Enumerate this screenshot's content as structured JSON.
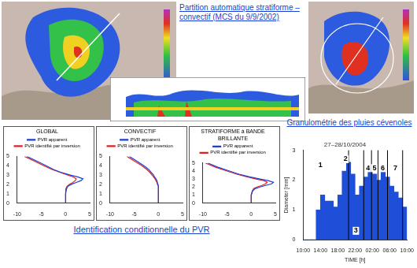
{
  "slide": {
    "top_caption": "Partition automatique stratiforme – convectif (MCS du 9/9/2002)",
    "pvr_caption": "Identification conditionnelle du PVR",
    "granulo_caption": "Granulométrie des pluies cévenoles"
  },
  "chart_data": [
    {
      "type": "line",
      "title": "GLOBAL",
      "legend": "top",
      "xlim": [
        -10,
        5
      ],
      "xticks": [
        -10,
        -5,
        0,
        5
      ],
      "ylim": [
        0,
        5
      ],
      "yticks": [
        0,
        1,
        2,
        3,
        4,
        5
      ],
      "series": [
        {
          "name": "PVR apparent",
          "color": "#1f3fd0",
          "x": [
            0,
            0,
            0,
            0.2,
            0.5,
            1.2,
            2.2,
            3.2,
            3.6,
            2.5,
            1,
            -1,
            -2.5,
            -4,
            -6,
            -8
          ],
          "y": [
            0,
            0.5,
            1,
            1.5,
            1.8,
            2,
            2.2,
            2.4,
            2.6,
            2.8,
            3,
            3.3,
            3.6,
            4,
            4.5,
            5
          ]
        },
        {
          "name": "PVR identifié par inversion",
          "color": "#e02020",
          "x": [
            0,
            0,
            0,
            0.1,
            0.3,
            0.8,
            1.5,
            2.0,
            2.2,
            1.6,
            0.5,
            -1.2,
            -2.8,
            -4.5,
            -6.5,
            -8.5
          ],
          "y": [
            0,
            0.5,
            1,
            1.5,
            1.8,
            2,
            2.2,
            2.4,
            2.6,
            2.8,
            3,
            3.3,
            3.6,
            4,
            4.5,
            5
          ]
        }
      ]
    },
    {
      "type": "line",
      "title": "CONVECTIF",
      "legend": "top",
      "xlim": [
        -10,
        5
      ],
      "xticks": [
        -10,
        -5,
        0,
        5
      ],
      "ylim": [
        0,
        5
      ],
      "yticks": [
        0,
        1,
        2,
        3,
        4,
        5
      ],
      "series": [
        {
          "name": "PVR apparent",
          "color": "#1f3fd0",
          "x": [
            0,
            0,
            0,
            0,
            0,
            -0.1,
            -0.2,
            -0.3,
            -0.5,
            -0.8,
            -1,
            -1.5,
            -2,
            -3,
            -4.5,
            -6
          ],
          "y": [
            0,
            0.5,
            1,
            1.5,
            1.8,
            2,
            2.2,
            2.4,
            2.6,
            2.8,
            3,
            3.3,
            3.6,
            4,
            4.5,
            5
          ]
        },
        {
          "name": "PVR identifié par inversion",
          "color": "#e02020",
          "x": [
            0,
            0,
            0,
            0,
            0,
            -0.1,
            -0.3,
            -0.5,
            -0.7,
            -1,
            -1.3,
            -1.8,
            -2.4,
            -3.4,
            -5,
            -6.5
          ],
          "y": [
            0,
            0.5,
            1,
            1.5,
            1.8,
            2,
            2.2,
            2.4,
            2.6,
            2.8,
            3,
            3.3,
            3.6,
            4,
            4.5,
            5
          ]
        }
      ]
    },
    {
      "type": "line",
      "title": "STRATIFORME à BANDE BRILLANTE",
      "legend": "top",
      "xlim": [
        -10,
        5
      ],
      "xticks": [
        -10,
        -5,
        0,
        5
      ],
      "ylim": [
        0,
        5
      ],
      "yticks": [
        0,
        1,
        2,
        3,
        4,
        5
      ],
      "series": [
        {
          "name": "PVR apparent",
          "color": "#1f3fd0",
          "x": [
            0,
            0,
            0,
            0.3,
            0.8,
            1.8,
            3,
            4.2,
            4.6,
            3.5,
            1.8,
            -0.5,
            -2.5,
            -4.5,
            -7,
            -9
          ],
          "y": [
            0,
            0.5,
            1,
            1.5,
            1.8,
            2,
            2.2,
            2.4,
            2.6,
            2.8,
            3,
            3.3,
            3.6,
            4,
            4.5,
            5
          ]
        },
        {
          "name": "PVR identifié par inversion",
          "color": "#e02020",
          "x": [
            0,
            0,
            0,
            0.2,
            0.5,
            1.2,
            2.2,
            3.0,
            3.3,
            2.6,
            1,
            -1,
            -3,
            -5,
            -7.5,
            -9.5
          ],
          "y": [
            0,
            0.5,
            1,
            1.5,
            1.8,
            2,
            2.2,
            2.4,
            2.6,
            2.8,
            3,
            3.3,
            3.6,
            4,
            4.5,
            5
          ]
        }
      ]
    },
    {
      "type": "bar",
      "title": "27–28/10/2004",
      "x_label": "TIME [h]",
      "y_label": "Diameter [mm]",
      "color": "#1f4fd8",
      "x": [
        0.5,
        1.5,
        2.5,
        3.5,
        4.5,
        5.5,
        6.5,
        7.5,
        8.5,
        9.5,
        10.5,
        11.5,
        12.5,
        13.5,
        14.5,
        15.5,
        16.5,
        17.5,
        18.5,
        19.5,
        20.5,
        21.5,
        22.5,
        23.5
      ],
      "values": [
        0,
        0,
        0,
        1.0,
        1.5,
        1.3,
        1.3,
        1.1,
        1.5,
        2.3,
        2.6,
        2.2,
        1.5,
        1.8,
        2.1,
        2.5,
        2.2,
        2.0,
        2.4,
        2.1,
        1.8,
        1.6,
        1.4,
        1.1
      ],
      "xlim": [
        0,
        24
      ],
      "xticks": [
        {
          "value": 0,
          "label": "10:00"
        },
        {
          "value": 4,
          "label": "14:00"
        },
        {
          "value": 8,
          "label": "18:00"
        },
        {
          "value": 12,
          "label": "22:00"
        },
        {
          "value": 16,
          "label": "02:00"
        },
        {
          "value": 20,
          "label": "06:00"
        },
        {
          "value": 24,
          "label": "10:00"
        }
      ],
      "ylim": [
        0,
        3
      ],
      "yticks": [
        0,
        1,
        2,
        3
      ],
      "segment_bounds": [
        10.5,
        14,
        15.8,
        17.3,
        19.5,
        23
      ],
      "annotations": [
        {
          "text": "1",
          "x": 4,
          "y": 2.5
        },
        {
          "text": "2",
          "x": 9.8,
          "y": 2.7
        },
        {
          "text": "3",
          "x": 12.2,
          "y": 0.3
        },
        {
          "text": "4",
          "x": 15,
          "y": 2.4
        },
        {
          "text": "5",
          "x": 16.5,
          "y": 2.4
        },
        {
          "text": "6",
          "x": 18.4,
          "y": 2.4
        },
        {
          "text": "7",
          "x": 21.3,
          "y": 2.4
        }
      ]
    }
  ]
}
